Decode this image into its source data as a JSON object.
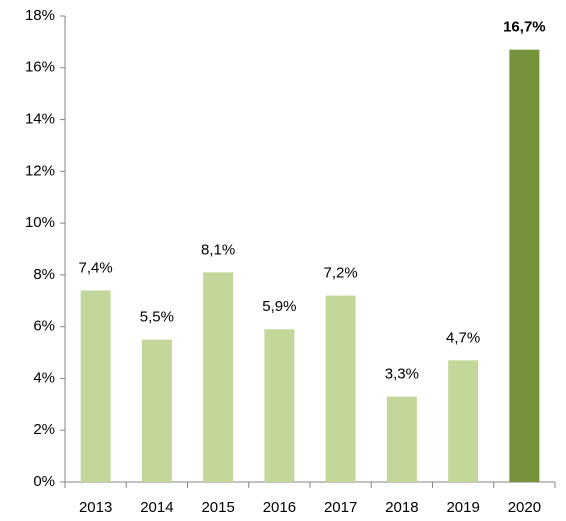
{
  "chart_data": {
    "type": "bar",
    "categories": [
      "2013",
      "2014",
      "2015",
      "2016",
      "2017",
      "2018",
      "2019",
      "2020"
    ],
    "values": [
      7.4,
      5.5,
      8.1,
      5.9,
      7.2,
      3.3,
      4.7,
      16.7
    ],
    "value_labels": [
      "7,4%",
      "5,5%",
      "8,1%",
      "5,9%",
      "7,2%",
      "3,3%",
      "4,7%",
      "16,7%"
    ],
    "colors": [
      "#c4d79b",
      "#c4d79b",
      "#c4d79b",
      "#c4d79b",
      "#c4d79b",
      "#c4d79b",
      "#c4d79b",
      "#76933c"
    ],
    "highlight_color": "#76933c",
    "ylim": [
      0,
      18
    ],
    "yticks": [
      {
        "value": 0,
        "label": "0%"
      },
      {
        "value": 2,
        "label": "2%"
      },
      {
        "value": 4,
        "label": "4%"
      },
      {
        "value": 6,
        "label": "6%"
      },
      {
        "value": 8,
        "label": "8%"
      },
      {
        "value": 10,
        "label": "10%"
      },
      {
        "value": 12,
        "label": "12%"
      },
      {
        "value": 14,
        "label": "14%"
      },
      {
        "value": 16,
        "label": "16%"
      },
      {
        "value": 18,
        "label": "18%"
      }
    ],
    "grid": false
  }
}
